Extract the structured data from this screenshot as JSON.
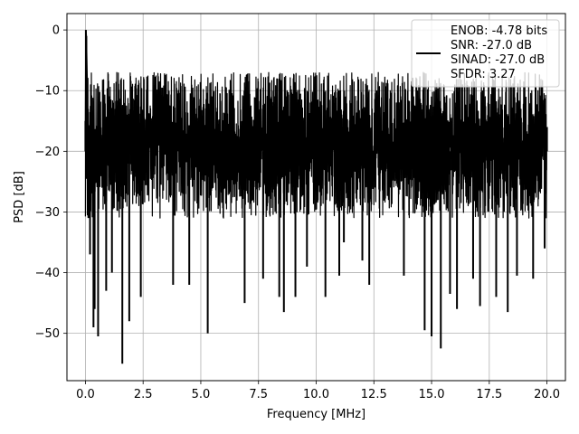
{
  "chart_data": {
    "type": "line",
    "xlabel": "Frequency [MHz]",
    "ylabel": "PSD [dB]",
    "xlim": [
      -0.8,
      20.8
    ],
    "ylim": [
      -57.8,
      2.7
    ],
    "xticks": [
      0.0,
      2.5,
      5.0,
      7.5,
      10.0,
      12.5,
      15.0,
      17.5,
      20.0
    ],
    "xtick_labels": [
      "0.0",
      "2.5",
      "5.0",
      "7.5",
      "10.0",
      "12.5",
      "15.0",
      "17.5",
      "20.0"
    ],
    "yticks": [
      0,
      -10,
      -20,
      -30,
      -40,
      -50
    ],
    "ytick_labels": [
      "0",
      "−10",
      "−20",
      "−30",
      "−40",
      "−50"
    ],
    "grid": true,
    "legend": {
      "placement": "top-right",
      "entries": [
        "ENOB: -4.78 bits",
        "SNR: -27.0 dB",
        "SINAD: -27.0 dB",
        "SFDR: 3.27"
      ]
    },
    "series": [
      {
        "color": "#000000",
        "noise_x_range": [
          0,
          20
        ],
        "noise_band": [
          -31,
          -7
        ],
        "x": [
          0.0,
          0.02,
          0.04,
          0.08,
          0.13,
          0.2,
          0.35,
          0.4,
          0.55,
          0.9,
          1.15,
          1.6,
          1.9,
          2.4,
          3.8,
          4.5,
          5.3,
          6.9,
          7.7,
          8.4,
          8.6,
          9.1,
          9.6,
          10.4,
          11.0,
          11.2,
          12.0,
          12.3,
          13.8,
          14.7,
          15.0,
          15.4,
          15.8,
          16.1,
          16.8,
          17.1,
          17.8,
          18.3,
          18.7,
          19.4,
          19.9,
          20.0
        ],
        "y": [
          -15,
          0,
          -1,
          -9,
          -31,
          -37,
          -49,
          -46,
          -50.5,
          -43,
          -40,
          -55,
          -48,
          -44,
          -42,
          -42,
          -50,
          -45,
          -41,
          -44,
          -46.5,
          -44,
          -39,
          -44,
          -40.5,
          -35,
          -38,
          -42,
          -40.5,
          -49.5,
          -50.5,
          -52.5,
          -43.5,
          -46,
          -41,
          -45.5,
          -44,
          -46.5,
          -40.5,
          -41,
          -36,
          -16
        ]
      }
    ]
  }
}
